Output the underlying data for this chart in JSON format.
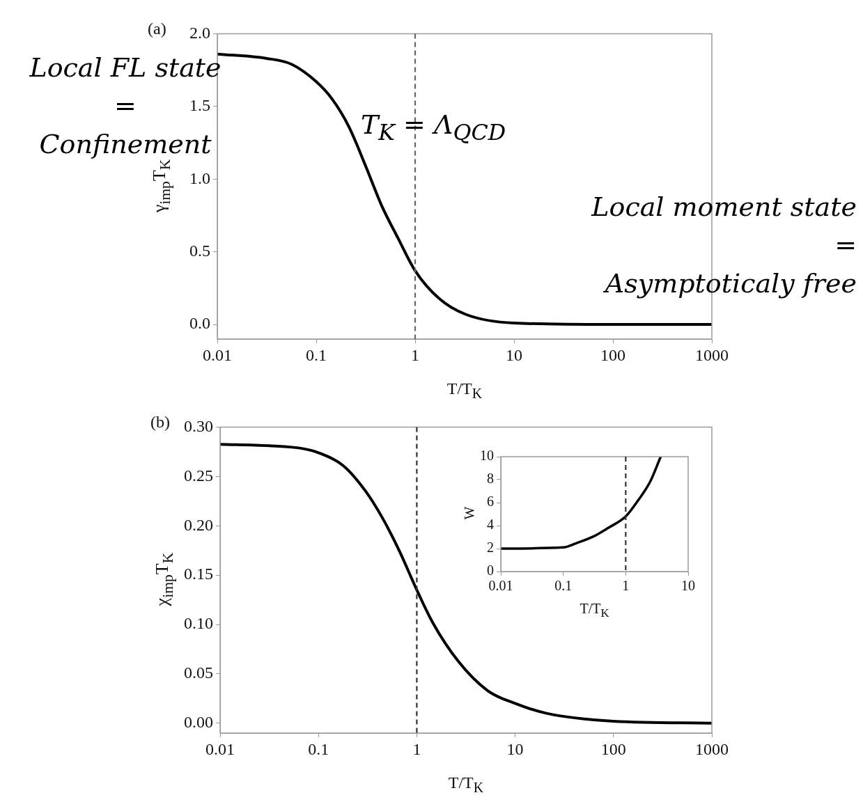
{
  "chart_data": [
    {
      "type": "line",
      "title": "(a)",
      "xlabel": "T/T$_{K}$",
      "ylabel": "γ$_{imp}$T$_{K}$",
      "log": "x",
      "marker": "none",
      "legend": false,
      "xlim": [
        0.01,
        1000
      ],
      "xticks": [
        0.01,
        0.1,
        1,
        10,
        100,
        1000
      ],
      "ylim": [
        -0.1,
        2.0
      ],
      "yticks": [
        {
          "value": 0,
          "label": "0.0"
        },
        0.5,
        {
          "value": 1,
          "label": "1.0"
        },
        1.5,
        {
          "value": 2,
          "label": "2.0"
        }
      ],
      "x": [
        0.01,
        0.0316,
        0.0562,
        0.1,
        0.145,
        0.214,
        0.316,
        0.457,
        0.676,
        1,
        1.74,
        3.24,
        10,
        100,
        1000
      ],
      "series": [
        {
          "color": "#000000",
          "values": [
            1.86,
            1.83,
            1.79,
            1.67,
            1.55,
            1.36,
            1.09,
            0.82,
            0.59,
            0.37,
            0.18,
            0.07,
            0.01,
            0,
            0
          ]
        }
      ],
      "ref_lines": [
        {
          "axis": "x",
          "value": 1,
          "color": "#666666",
          "line_style": "dashed"
        }
      ],
      "annotations": [
        "Local FL state\n=\nConfinement",
        "T$_{K}$ = Λ$_{QCD}$",
        "Local moment state\n=\nAsymptoticaly free"
      ]
    },
    {
      "type": "line",
      "title": "(b)",
      "xlabel": "T/T$_{K}$",
      "ylabel": "χ$_{imp}$T$_{K}$",
      "log": "x",
      "marker": "none",
      "legend": false,
      "xlim": [
        0.01,
        1000
      ],
      "xticks": [
        0.01,
        0.1,
        1,
        10,
        100,
        1000
      ],
      "ylim": [
        -0.01,
        0.3
      ],
      "yticks": [
        {
          "value": 0,
          "label": "0.00"
        },
        0.05,
        {
          "value": 0.1,
          "label": "0.10"
        },
        0.15,
        {
          "value": 0.2,
          "label": "0.20"
        },
        0.25,
        {
          "value": 0.3,
          "label": "0.30"
        }
      ],
      "x": [
        0.01,
        0.0316,
        0.0708,
        0.1,
        0.178,
        0.302,
        0.447,
        0.661,
        1,
        1.45,
        2.63,
        5.25,
        10,
        20.9,
        100,
        1000
      ],
      "series": [
        {
          "color": "#000000",
          "values": [
            0.2825,
            0.281,
            0.278,
            0.274,
            0.261,
            0.235,
            0.208,
            0.175,
            0.135,
            0.102,
            0.063,
            0.033,
            0.02,
            0.01,
            0.002,
            0
          ]
        }
      ],
      "ref_lines": [
        {
          "axis": "x",
          "value": 1,
          "color": "#333333",
          "line_style": "dashed"
        }
      ]
    },
    {
      "type": "line",
      "xlabel": "T/T$_{K}$",
      "ylabel": "W",
      "log": "x",
      "marker": "none",
      "legend": false,
      "xlim": [
        0.01,
        10
      ],
      "xticks": [
        0.01,
        0.1,
        1,
        10
      ],
      "ylim": [
        0,
        10
      ],
      "yticks": [
        0,
        2,
        4,
        6,
        8,
        10
      ],
      "x": [
        0.01,
        0.1,
        0.158,
        0.316,
        0.525,
        1,
        1.58,
        2.45,
        3.63
      ],
      "series": [
        {
          "color": "#000000",
          "values": [
            2,
            2.1,
            2.45,
            3.1,
            3.8,
            4.8,
            6.2,
            7.8,
            10
          ]
        }
      ],
      "ref_lines": [
        {
          "axis": "x",
          "value": 1,
          "color": "#333333",
          "line_style": "dashed"
        }
      ]
    }
  ]
}
